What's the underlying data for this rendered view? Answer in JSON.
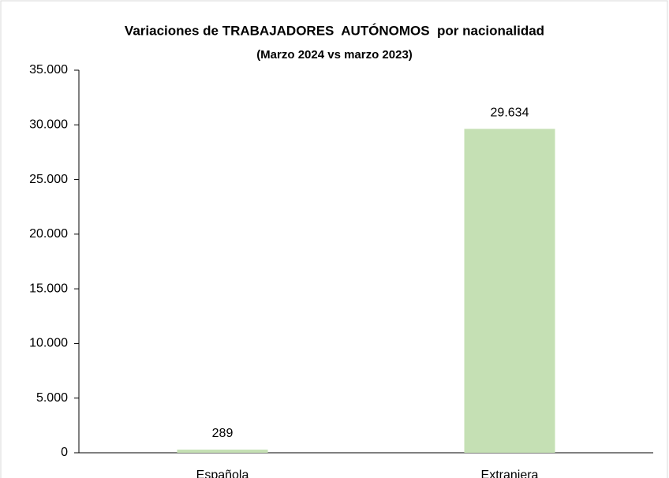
{
  "chart_data": {
    "type": "bar",
    "title": "Variaciones de TRABAJADORES  AUTÓNOMOS  por nacionalidad",
    "subtitle": "(Marzo 2024 vs marzo 2023)",
    "categories": [
      "Española",
      "Extranjera"
    ],
    "values": [
      289,
      29634
    ],
    "value_labels": [
      "289",
      "29.634"
    ],
    "color": "#c5e0b4",
    "ylim": [
      0,
      35000
    ],
    "yticks": [
      0,
      {
        "value": 5000,
        "label": "5.000"
      },
      {
        "value": 10000,
        "label": "10.000"
      },
      {
        "value": 15000,
        "label": "15.000"
      },
      {
        "value": 20000,
        "label": "20.000"
      },
      {
        "value": 25000,
        "label": "25.000"
      },
      {
        "value": 30000,
        "label": "30.000"
      },
      {
        "value": 35000,
        "label": "35.000"
      }
    ],
    "grid": false
  }
}
